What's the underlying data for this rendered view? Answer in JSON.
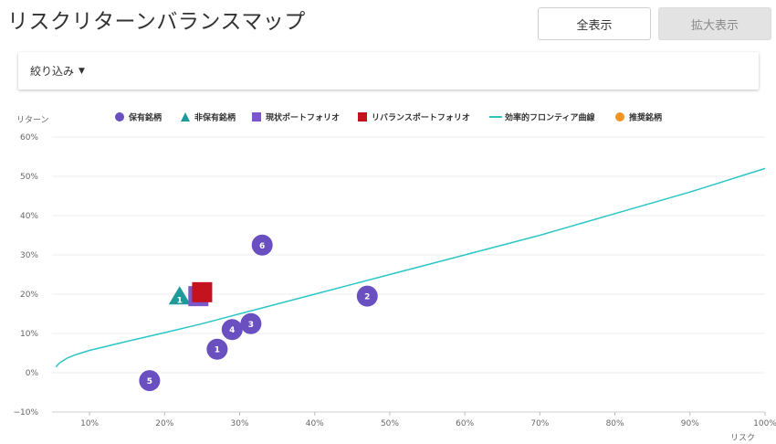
{
  "header": {
    "title": "リスクリターンバランスマップ"
  },
  "toolbar": {
    "show_all_label": "全表示",
    "zoom_label": "拡大表示"
  },
  "filter": {
    "label": "絞り込み"
  },
  "colors": {
    "holding": "#6a4fc1",
    "non_holding": "#1e9a9a",
    "current_portfolio": "#7b57c9",
    "rebalance_portfolio": "#c4121f",
    "frontier": "#2cc6c6",
    "recommended": "#f39422"
  },
  "chart_data": {
    "type": "scatter",
    "xlabel": "リスク",
    "ylabel": "リターン",
    "xlim": [
      5,
      100
    ],
    "ylim": [
      -10,
      60
    ],
    "x_ticks": [
      "10%",
      "20%",
      "30%",
      "40%",
      "50%",
      "60%",
      "70%",
      "80%",
      "90%",
      "100%"
    ],
    "y_ticks": [
      "60%",
      "50%",
      "40%",
      "30%",
      "20%",
      "10%",
      "0%",
      "−10%"
    ],
    "legend": [
      {
        "name": "保有銘柄",
        "shape": "circle"
      },
      {
        "name": "非保有銘柄",
        "shape": "triangle"
      },
      {
        "name": "現状ポートフォリオ",
        "shape": "square"
      },
      {
        "name": "リバランスポートフォリオ",
        "shape": "square"
      },
      {
        "name": "効率的フロンティア曲線",
        "shape": "line"
      },
      {
        "name": "推奨銘柄",
        "shape": "circle"
      }
    ],
    "holdings": [
      {
        "label": "1",
        "x": 27,
        "y": 6
      },
      {
        "label": "2",
        "x": 47,
        "y": 19.5
      },
      {
        "label": "3",
        "x": 31.5,
        "y": 12.5
      },
      {
        "label": "4",
        "x": 29,
        "y": 11
      },
      {
        "label": "5",
        "x": 18,
        "y": -2
      },
      {
        "label": "6",
        "x": 33,
        "y": 32.5
      }
    ],
    "non_holdings": [
      {
        "label": "1",
        "x": 22,
        "y": 19
      }
    ],
    "current_portfolio": {
      "x": 24.5,
      "y": 19.5
    },
    "rebalance_portfolio": {
      "x": 25,
      "y": 20.5
    },
    "frontier": {
      "x": [
        5.5,
        6,
        7,
        8,
        10,
        12,
        15,
        20,
        25,
        30,
        40,
        50,
        60,
        70,
        80,
        90,
        100
      ],
      "y": [
        1.5,
        2.5,
        3.7,
        4.5,
        5.7,
        6.6,
        8,
        10.2,
        12.5,
        15,
        20,
        25,
        30,
        35,
        40.5,
        46,
        52
      ]
    }
  }
}
